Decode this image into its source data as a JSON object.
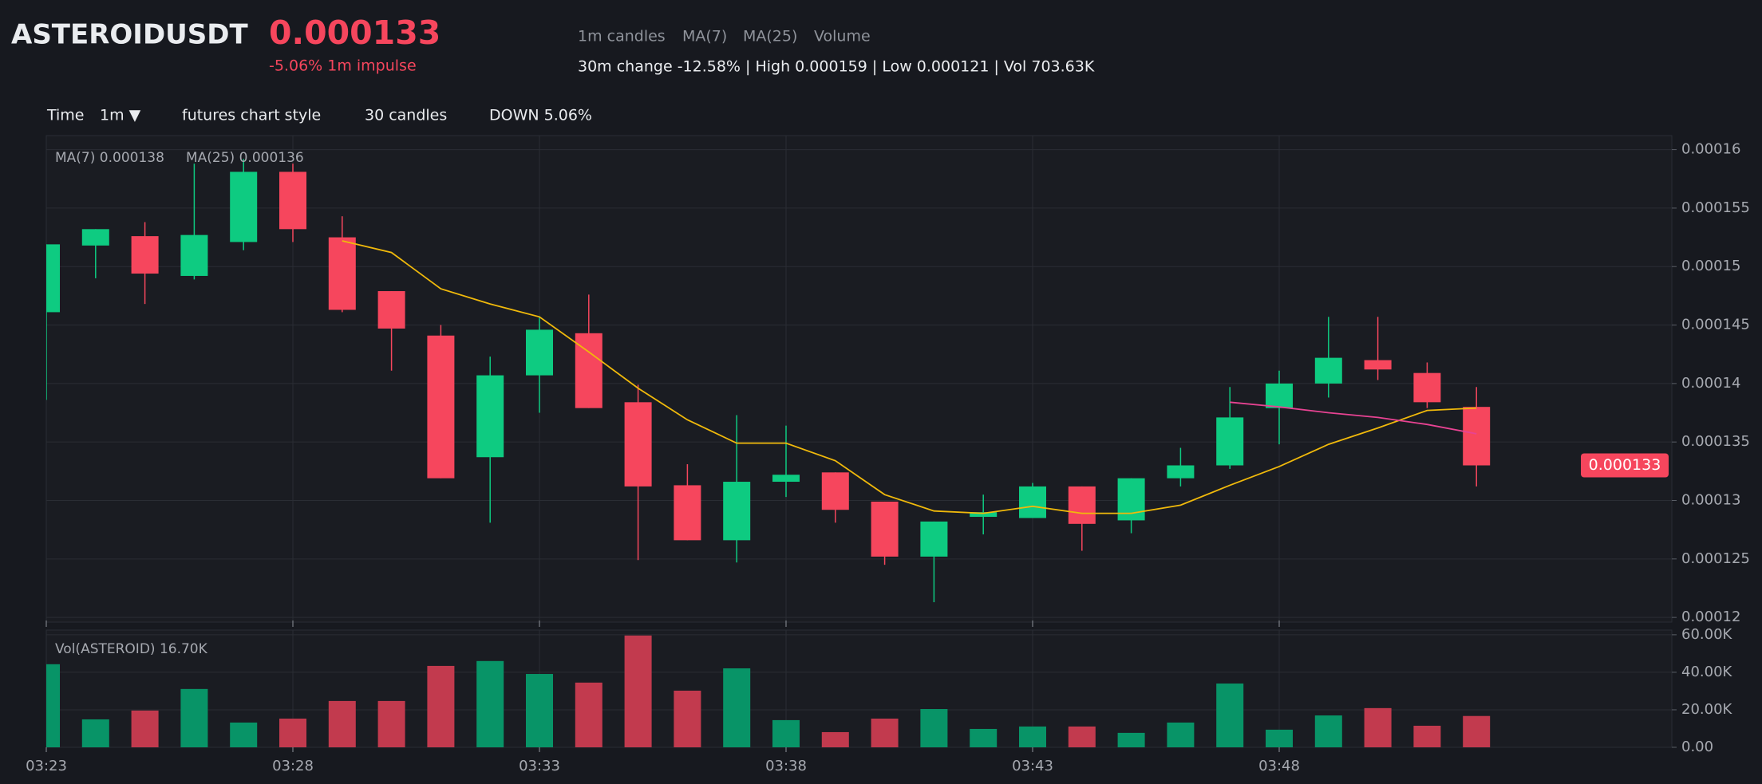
{
  "header": {
    "symbol": "ASTEROIDUSDT",
    "price": "0.000133",
    "impulse": "-5.06% 1m impulse",
    "stats": "30m change -12.58% | High 0.000159 | Low 0.000121 | Vol 703.63K"
  },
  "toolbar": {
    "time_label": "Time",
    "interval": "1m ▼",
    "style": "futures chart style",
    "count": "30 candles",
    "direction": "DOWN 5.06%"
  },
  "chart_data": {
    "type": "candlestick",
    "candle_name": "1m candles",
    "up_color": "#0ecb81",
    "down_color": "#f6465d",
    "volume_up_color": "#089467",
    "volume_down_color": "#c23a4e",
    "categories": [
      "03:23",
      null,
      null,
      null,
      null,
      "03:28",
      null,
      null,
      null,
      null,
      "03:33",
      null,
      null,
      null,
      null,
      "03:38",
      null,
      null,
      null,
      null,
      "03:43",
      null,
      null,
      null,
      null,
      "03:48",
      null,
      null,
      null,
      null
    ],
    "open": [
      0.0001461,
      0.0001518,
      0.0001526,
      0.0001492,
      0.0001521,
      0.0001581,
      0.0001525,
      0.0001479,
      0.0001441,
      0.0001337,
      0.0001407,
      0.0001443,
      0.0001384,
      0.0001313,
      0.0001266,
      0.0001316,
      0.0001324,
      0.0001299,
      0.0001252,
      0.0001286,
      0.0001285,
      0.0001312,
      0.0001283,
      0.0001319,
      0.000133,
      0.0001379,
      0.00014,
      0.000142,
      0.0001409,
      0.000138
    ],
    "high": [
      0.0001519,
      0.0001532,
      0.0001538,
      0.0001588,
      0.0001592,
      0.0001588,
      0.0001543,
      0.0001479,
      0.000145,
      0.0001423,
      0.0001457,
      0.0001476,
      0.0001399,
      0.0001331,
      0.0001373,
      0.0001364,
      0.0001324,
      0.0001299,
      0.0001282,
      0.0001305,
      0.0001315,
      0.0001312,
      0.0001319,
      0.0001345,
      0.0001397,
      0.0001411,
      0.0001457,
      0.0001457,
      0.0001418,
      0.0001397
    ],
    "low": [
      0.0001386,
      0.000149,
      0.0001468,
      0.0001489,
      0.0001514,
      0.0001521,
      0.0001461,
      0.0001411,
      0.0001319,
      0.0001281,
      0.0001375,
      0.0001379,
      0.0001249,
      0.0001266,
      0.0001247,
      0.0001303,
      0.0001281,
      0.0001245,
      0.0001213,
      0.0001271,
      0.0001285,
      0.0001257,
      0.0001272,
      0.0001312,
      0.0001327,
      0.0001348,
      0.0001388,
      0.0001403,
      0.0001379,
      0.0001312
    ],
    "close": [
      0.0001519,
      0.0001532,
      0.0001494,
      0.0001527,
      0.0001581,
      0.0001532,
      0.0001463,
      0.0001447,
      0.0001319,
      0.0001407,
      0.0001446,
      0.0001379,
      0.0001312,
      0.0001266,
      0.0001316,
      0.0001322,
      0.0001292,
      0.0001252,
      0.0001282,
      0.000129,
      0.0001312,
      0.000128,
      0.0001319,
      0.000133,
      0.0001371,
      0.00014,
      0.0001422,
      0.0001412,
      0.0001384,
      0.000133
    ],
    "lines": [
      {
        "name": "MA(7)",
        "label": "MA(7) 0.000138",
        "color": "#f0b90b",
        "values": [
          null,
          null,
          null,
          null,
          null,
          null,
          0.0001522,
          0.0001512,
          0.0001481,
          0.0001468,
          0.0001457,
          0.0001427,
          0.0001396,
          0.0001369,
          0.0001349,
          0.0001349,
          0.0001334,
          0.0001305,
          0.0001291,
          0.0001289,
          0.0001295,
          0.0001289,
          0.0001289,
          0.0001296,
          0.0001313,
          0.0001329,
          0.0001348,
          0.0001362,
          0.0001377,
          0.0001379
        ]
      },
      {
        "name": "MA(25)",
        "label": "MA(25) 0.000136",
        "color": "#e84393",
        "values": [
          null,
          null,
          null,
          null,
          null,
          null,
          null,
          null,
          null,
          null,
          null,
          null,
          null,
          null,
          null,
          null,
          null,
          null,
          null,
          null,
          null,
          null,
          null,
          null,
          0.0001384,
          0.000138,
          0.0001375,
          0.0001371,
          0.0001365,
          0.0001357
        ]
      }
    ],
    "last_price": 0.000133,
    "ylim": [
      0.0001196,
      0.0001612
    ],
    "yticks": [
      0.00012,
      0.000125,
      0.00013,
      0.000135,
      0.00014,
      0.000145,
      0.00015,
      0.000155,
      0.00016
    ],
    "grid": true,
    "volume": {
      "name": "Volume",
      "label": "Vol(ASTEROID) 16.70K",
      "values": [
        44300,
        14900,
        19600,
        31100,
        13200,
        15300,
        24700,
        24700,
        43400,
        46000,
        39100,
        34500,
        59600,
        30200,
        42100,
        14500,
        8100,
        15300,
        20400,
        9800,
        11100,
        11100,
        7700,
        13200,
        34000,
        9400,
        17000,
        20900,
        11500,
        16700
      ],
      "ylim": [
        0,
        62500
      ],
      "yticks": [
        {
          "value": 0,
          "label": "0.00"
        },
        {
          "value": 20000,
          "label": "20.00K"
        },
        {
          "value": 40000,
          "label": "40.00K"
        },
        {
          "value": 60000,
          "label": "60.00K"
        }
      ]
    }
  }
}
